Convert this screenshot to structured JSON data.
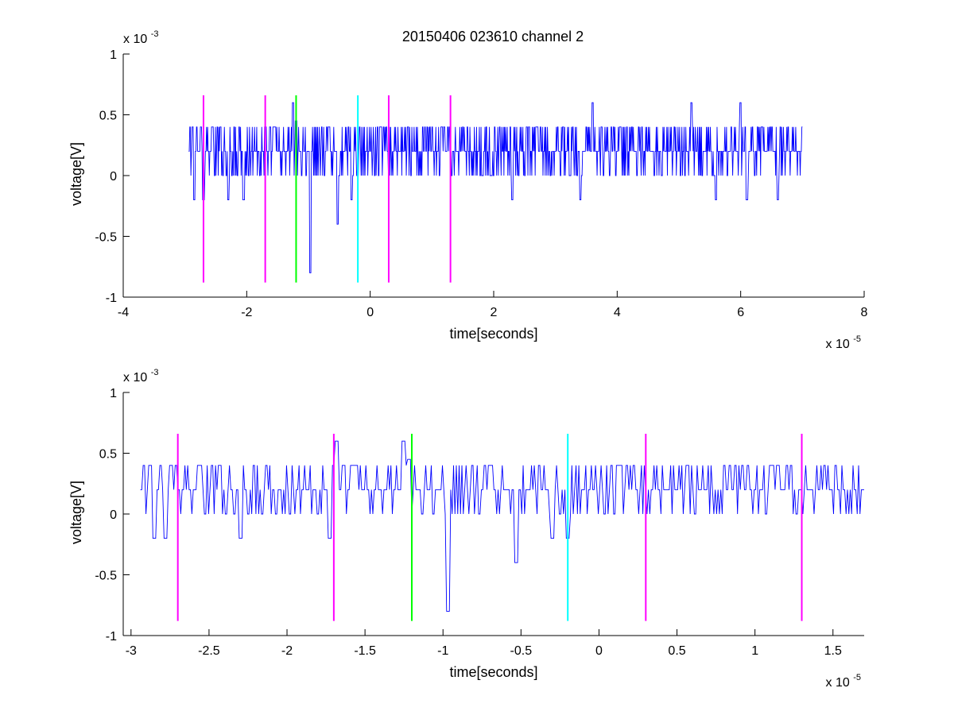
{
  "figure": {
    "title": "20150406 023610 channel 2"
  },
  "chart_data": [
    {
      "type": "line",
      "name": "overview",
      "title": "20150406 023610 channel 2",
      "xlabel": "time[seconds]",
      "ylabel": "voltage[V]",
      "x_multiplier_text": "x 10",
      "x_multiplier_exp": "-5",
      "y_multiplier_text": "x 10",
      "y_multiplier_exp": "-3",
      "xlim": [
        -4,
        8
      ],
      "ylim": [
        -1,
        1
      ],
      "xticks": [
        -4,
        -2,
        0,
        2,
        4,
        6,
        8
      ],
      "xtick_labels": [
        "-4",
        "-2",
        "0",
        "2",
        "4",
        "6",
        "8"
      ],
      "yticks": [
        -1,
        -0.5,
        0,
        0.5,
        1
      ],
      "ytick_labels": [
        "-1",
        "-0.5",
        "0",
        "0.5",
        "1"
      ],
      "grid": false,
      "signal": {
        "color": "#0000ff",
        "x_start": -2.94,
        "x_end": 7.0,
        "baseline_levels": [
          0,
          0.2,
          0.4
        ],
        "features": [
          {
            "x": -2.85,
            "y": -0.2
          },
          {
            "x": -2.7,
            "y": -0.2
          },
          {
            "x": -2.3,
            "y": -0.2
          },
          {
            "x": -2.05,
            "y": -0.2
          },
          {
            "x": -1.25,
            "y": 0.6
          },
          {
            "x": -1.2,
            "y": 0.45
          },
          {
            "x": -0.97,
            "y": -0.8
          },
          {
            "x": -0.53,
            "y": -0.4
          },
          {
            "x": -0.3,
            "y": -0.2
          },
          {
            "x": 3.6,
            "y": 0.6
          },
          {
            "x": 5.2,
            "y": 0.6
          },
          {
            "x": 6.0,
            "y": 0.6
          },
          {
            "x": 2.3,
            "y": -0.2
          },
          {
            "x": 3.4,
            "y": -0.2
          },
          {
            "x": 5.6,
            "y": -0.2
          },
          {
            "x": 6.1,
            "y": -0.2
          },
          {
            "x": 6.6,
            "y": -0.2
          },
          {
            "x": 7.0,
            "y": 0.4
          }
        ]
      },
      "markers": [
        {
          "x": -2.7,
          "color": "#ff00ff"
        },
        {
          "x": -1.7,
          "color": "#ff00ff"
        },
        {
          "x": -1.2,
          "color": "#00ff00"
        },
        {
          "x": -0.2,
          "color": "#00ffff"
        },
        {
          "x": 0.3,
          "color": "#ff00ff"
        },
        {
          "x": 1.3,
          "color": "#ff00ff"
        }
      ],
      "marker_range": [
        -0.88,
        0.66
      ]
    },
    {
      "type": "line",
      "name": "zoom",
      "title": "",
      "xlabel": "time[seconds]",
      "ylabel": "voltage[V]",
      "x_multiplier_text": "x 10",
      "x_multiplier_exp": "-5",
      "y_multiplier_text": "x 10",
      "y_multiplier_exp": "-3",
      "xlim": [
        -3.05,
        1.7
      ],
      "ylim": [
        -1,
        1
      ],
      "xticks": [
        -3,
        -2.5,
        -2,
        -1.5,
        -1,
        -0.5,
        0,
        0.5,
        1,
        1.5
      ],
      "xtick_labels": [
        "-3",
        "-2.5",
        "-2",
        "-1.5",
        "-1",
        "-0.5",
        "0",
        "0.5",
        "1",
        "1.5"
      ],
      "yticks": [
        -1,
        -0.5,
        0,
        0.5,
        1
      ],
      "ytick_labels": [
        "-1",
        "-0.5",
        "0",
        "0.5",
        "1"
      ],
      "grid": false,
      "signal": {
        "color": "#0000ff",
        "x_start": -2.94,
        "x_end": 1.7,
        "baseline_levels": [
          0,
          0.2,
          0.4
        ],
        "features": [
          {
            "x": -2.85,
            "y": -0.2
          },
          {
            "x": -2.78,
            "y": -0.2
          },
          {
            "x": -2.3,
            "y": -0.2
          },
          {
            "x": -1.73,
            "y": -0.2
          },
          {
            "x": -1.68,
            "y": 0.6
          },
          {
            "x": -1.25,
            "y": 0.6
          },
          {
            "x": -1.22,
            "y": 0.45
          },
          {
            "x": -0.97,
            "y": -0.8
          },
          {
            "x": -0.53,
            "y": -0.4
          },
          {
            "x": -0.3,
            "y": -0.2
          },
          {
            "x": -0.2,
            "y": -0.2
          }
        ]
      },
      "markers": [
        {
          "x": -2.7,
          "color": "#ff00ff"
        },
        {
          "x": -1.7,
          "color": "#ff00ff"
        },
        {
          "x": -1.2,
          "color": "#00ff00"
        },
        {
          "x": -0.2,
          "color": "#00ffff"
        },
        {
          "x": 0.3,
          "color": "#ff00ff"
        },
        {
          "x": 1.3,
          "color": "#ff00ff"
        }
      ],
      "marker_range": [
        -0.88,
        0.66
      ]
    }
  ]
}
